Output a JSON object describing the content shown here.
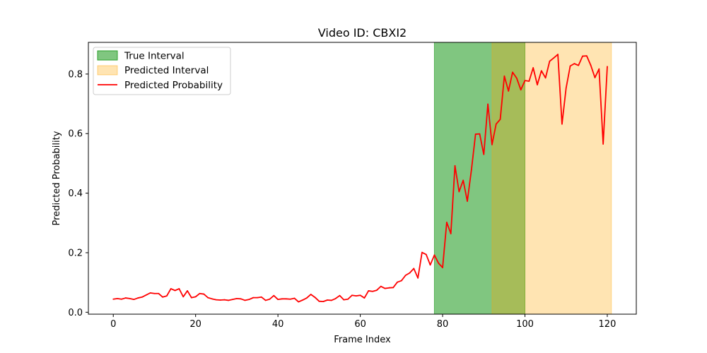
{
  "chart_data": {
    "type": "line",
    "title": "Video ID: CBXI2",
    "xlabel": "Frame Index",
    "ylabel": "Predicted Probability",
    "xlim": [
      -6.05,
      127.05
    ],
    "ylim": [
      -0.0064,
      0.9064
    ],
    "xticks": [
      0,
      20,
      40,
      60,
      80,
      100,
      120
    ],
    "yticks": [
      0.0,
      0.2,
      0.4,
      0.6,
      0.8
    ],
    "xtick_labels": [
      "0",
      "20",
      "40",
      "60",
      "80",
      "100",
      "120"
    ],
    "ytick_labels": [
      "0.0",
      "0.2",
      "0.4",
      "0.6",
      "0.8"
    ],
    "grid": false,
    "legend_position": "upper-left",
    "legend": [
      "True Interval",
      "Predicted Interval",
      "Predicted Probability"
    ],
    "intervals": [
      {
        "name": "True Interval",
        "start": 78,
        "end": 100,
        "color": "#2ca02c",
        "opacity": 0.6
      },
      {
        "name": "Predicted Interval",
        "start": 92,
        "end": 121,
        "color": "#ffa500",
        "opacity": 0.3
      }
    ],
    "series": [
      {
        "name": "Predicted Probability",
        "color": "#ff0000",
        "x": [
          0,
          1,
          2,
          3,
          4,
          5,
          6,
          7,
          8,
          9,
          10,
          11,
          12,
          13,
          14,
          15,
          16,
          17,
          18,
          19,
          20,
          21,
          22,
          23,
          24,
          25,
          26,
          27,
          28,
          29,
          30,
          31,
          32,
          33,
          34,
          35,
          36,
          37,
          38,
          39,
          40,
          41,
          42,
          43,
          44,
          45,
          46,
          47,
          48,
          49,
          50,
          51,
          52,
          53,
          54,
          55,
          56,
          57,
          58,
          59,
          60,
          61,
          62,
          63,
          64,
          65,
          66,
          67,
          68,
          69,
          70,
          71,
          72,
          73,
          74,
          75,
          76,
          77,
          78,
          79,
          80,
          81,
          82,
          83,
          84,
          85,
          86,
          87,
          88,
          89,
          90,
          91,
          92,
          93,
          94,
          95,
          96,
          97,
          98,
          99,
          100,
          101,
          102,
          103,
          104,
          105,
          106,
          107,
          108,
          109,
          110,
          111,
          112,
          113,
          114,
          115,
          116,
          117,
          118,
          119,
          120
        ],
        "values": [
          0.044,
          0.046,
          0.044,
          0.048,
          0.046,
          0.043,
          0.048,
          0.051,
          0.058,
          0.065,
          0.063,
          0.063,
          0.051,
          0.055,
          0.079,
          0.073,
          0.079,
          0.052,
          0.072,
          0.049,
          0.052,
          0.063,
          0.061,
          0.049,
          0.045,
          0.042,
          0.041,
          0.042,
          0.04,
          0.043,
          0.046,
          0.045,
          0.04,
          0.043,
          0.049,
          0.049,
          0.051,
          0.04,
          0.044,
          0.056,
          0.043,
          0.045,
          0.045,
          0.044,
          0.047,
          0.035,
          0.041,
          0.048,
          0.06,
          0.05,
          0.037,
          0.036,
          0.041,
          0.04,
          0.046,
          0.056,
          0.042,
          0.044,
          0.057,
          0.055,
          0.057,
          0.048,
          0.072,
          0.07,
          0.074,
          0.087,
          0.08,
          0.082,
          0.083,
          0.101,
          0.106,
          0.124,
          0.132,
          0.147,
          0.115,
          0.201,
          0.194,
          0.159,
          0.192,
          0.165,
          0.15,
          0.302,
          0.264,
          0.492,
          0.405,
          0.443,
          0.373,
          0.478,
          0.598,
          0.599,
          0.53,
          0.699,
          0.563,
          0.632,
          0.648,
          0.793,
          0.743,
          0.806,
          0.786,
          0.747,
          0.778,
          0.776,
          0.821,
          0.764,
          0.811,
          0.787,
          0.843,
          0.854,
          0.866,
          0.632,
          0.753,
          0.827,
          0.835,
          0.829,
          0.86,
          0.861,
          0.829,
          0.788,
          0.817,
          0.565,
          0.825
        ]
      }
    ]
  }
}
